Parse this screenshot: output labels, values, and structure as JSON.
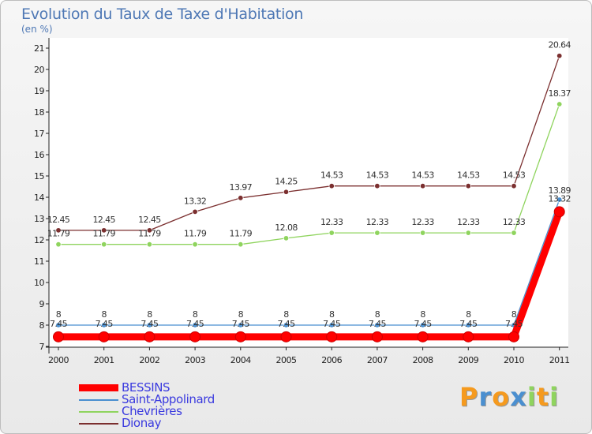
{
  "chart_data": {
    "type": "line",
    "title": "Evolution du Taux de Taxe d'Habitation",
    "subtitle": "(en %)",
    "xlabel": "",
    "ylabel": "",
    "categories": [
      "2000",
      "2001",
      "2002",
      "2003",
      "2004",
      "2005",
      "2006",
      "2007",
      "2008",
      "2009",
      "2010",
      "2011"
    ],
    "ylim": [
      7,
      21
    ],
    "yticks": [
      "7",
      "8",
      "9",
      "10",
      "11",
      "12",
      "13",
      "14",
      "15",
      "16",
      "17",
      "18",
      "19",
      "20",
      "21"
    ],
    "series": [
      {
        "name": "BESSINS",
        "color": "#ff0000",
        "values": [
          7.45,
          7.45,
          7.45,
          7.45,
          7.45,
          7.45,
          7.45,
          7.45,
          7.45,
          7.45,
          7.45,
          13.32
        ],
        "labels": [
          "7.45",
          "7.45",
          "7.45",
          "7.45",
          "7.45",
          "7.45",
          "7.45",
          "7.45",
          "7.45",
          "7.45",
          "7.45",
          "13.32"
        ]
      },
      {
        "name": "Saint-Appolinard",
        "color": "#4a8fd0",
        "values": [
          8,
          8,
          8,
          8,
          8,
          8,
          8,
          8,
          8,
          8,
          8,
          13.89
        ],
        "labels": [
          "8",
          "8",
          "8",
          "8",
          "8",
          "8",
          "8",
          "8",
          "8",
          "8",
          "8",
          "13.89"
        ]
      },
      {
        "name": "Chevrières",
        "color": "#8fd45e",
        "values": [
          11.79,
          11.79,
          11.79,
          11.79,
          11.79,
          12.08,
          12.33,
          12.33,
          12.33,
          12.33,
          12.33,
          18.37
        ],
        "labels": [
          "11.79",
          "11.79",
          "11.79",
          "11.79",
          "11.79",
          "12.08",
          "12.33",
          "12.33",
          "12.33",
          "12.33",
          "12.33",
          "18.37"
        ]
      },
      {
        "name": "Dionay",
        "color": "#7b2f2f",
        "values": [
          12.45,
          12.45,
          12.45,
          13.32,
          13.97,
          14.25,
          14.53,
          14.53,
          14.53,
          14.53,
          14.53,
          20.64
        ],
        "labels": [
          "12.45",
          "12.45",
          "12.45",
          "13.32",
          "13.97",
          "14.25",
          "14.53",
          "14.53",
          "14.53",
          "14.53",
          "14.53",
          "20.64"
        ]
      }
    ],
    "legend_position": "bottom-left",
    "grid": false
  },
  "branding": {
    "letters": [
      "P",
      "r",
      "o",
      "x",
      "i",
      "t",
      "i"
    ],
    "colors": [
      "#f59a1e",
      "#4a8fd0",
      "#f59a1e",
      "#4a8fd0",
      "#8fd45e",
      "#f59a1e",
      "#8fd45e"
    ]
  }
}
